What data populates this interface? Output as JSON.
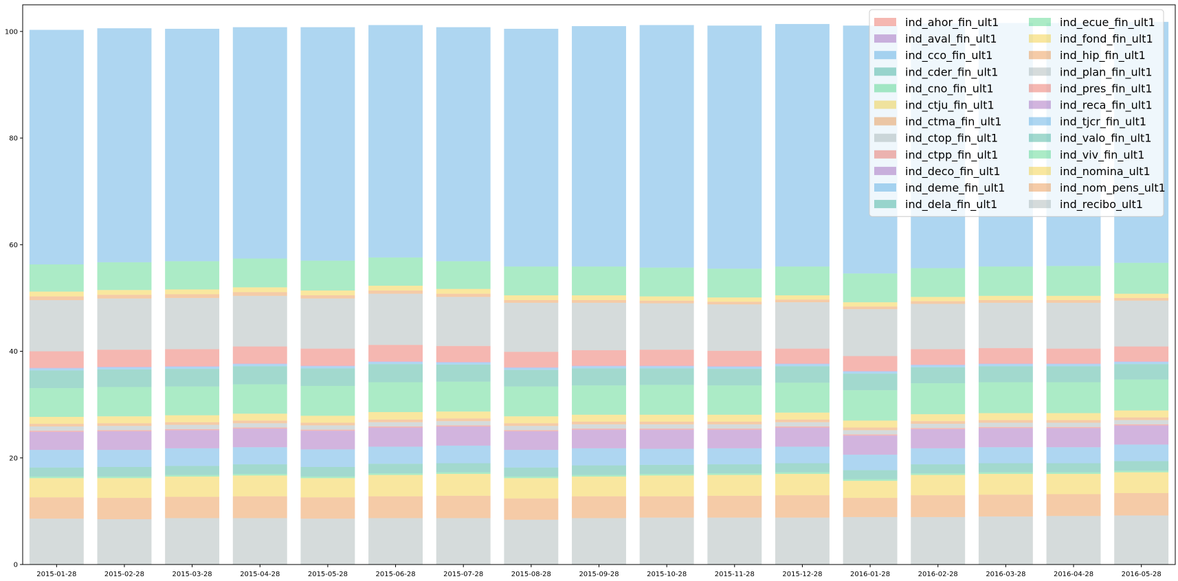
{
  "chart_data": {
    "type": "bar",
    "stacked": true,
    "bar_opacity": 0.4,
    "ylim": [
      0,
      105
    ],
    "y_ticks": [
      0,
      20,
      40,
      60,
      80,
      100
    ],
    "grid": false,
    "legend_position": "top-right",
    "legend_columns": 2,
    "categories": [
      "2015-01-28",
      "2015-02-28",
      "2015-03-28",
      "2015-04-28",
      "2015-05-28",
      "2015-06-28",
      "2015-07-28",
      "2015-08-28",
      "2015-09-28",
      "2015-10-28",
      "2015-11-28",
      "2015-12-28",
      "2016-01-28",
      "2016-02-28",
      "2016-03-28",
      "2016-04-28",
      "2016-05-28"
    ],
    "series": [
      {
        "name": "ind_recibo_ult1",
        "color": "#95a5a6",
        "values": [
          8.6,
          8.5,
          8.7,
          8.7,
          8.6,
          8.7,
          8.7,
          8.4,
          8.7,
          8.8,
          8.8,
          8.8,
          8.9,
          8.9,
          9.0,
          9.1,
          9.2
        ]
      },
      {
        "name": "ind_nom_pens_ult1",
        "color": "#e67e22",
        "values": [
          4.0,
          4.0,
          4.0,
          4.1,
          4.0,
          4.1,
          4.2,
          4.0,
          4.1,
          4.0,
          4.1,
          4.2,
          3.6,
          4.1,
          4.1,
          4.1,
          4.2
        ]
      },
      {
        "name": "ind_nomina_ult1",
        "color": "#f1c40f",
        "values": [
          3.6,
          3.7,
          3.8,
          3.9,
          3.6,
          4.0,
          4.1,
          3.8,
          3.7,
          3.9,
          3.9,
          4.0,
          3.2,
          3.8,
          3.9,
          3.8,
          3.9
        ]
      },
      {
        "name": "ind_viv_fin_ult1",
        "color": "#2ecc71",
        "values": [
          0.3,
          0.3,
          0.3,
          0.3,
          0.3,
          0.3,
          0.3,
          0.3,
          0.3,
          0.3,
          0.3,
          0.3,
          0.3,
          0.3,
          0.3,
          0.3,
          0.3
        ]
      },
      {
        "name": "ind_valo_fin_ult1",
        "color": "#16a085",
        "values": [
          1.7,
          1.8,
          1.7,
          1.8,
          1.8,
          1.8,
          1.7,
          1.7,
          1.8,
          1.7,
          1.7,
          1.7,
          1.7,
          1.7,
          1.7,
          1.7,
          1.8
        ]
      },
      {
        "name": "ind_tjcr_fin_ult1",
        "color": "#3498db",
        "values": [
          3.3,
          3.2,
          3.3,
          3.2,
          3.3,
          3.2,
          3.3,
          3.3,
          3.2,
          3.0,
          3.0,
          3.1,
          2.9,
          3.0,
          3.0,
          3.0,
          3.1
        ]
      },
      {
        "name": "ind_reca_fin_ult1",
        "color": "#8e44ad",
        "values": [
          3.4,
          3.5,
          3.4,
          3.5,
          3.5,
          3.6,
          3.6,
          3.5,
          3.5,
          3.6,
          3.5,
          3.6,
          3.6,
          3.6,
          3.6,
          3.6,
          3.6
        ]
      },
      {
        "name": "ind_pres_fin_ult1",
        "color": "#e74c3c",
        "values": [
          0.2,
          0.2,
          0.2,
          0.2,
          0.2,
          0.2,
          0.2,
          0.2,
          0.2,
          0.2,
          0.2,
          0.2,
          0.2,
          0.2,
          0.2,
          0.2,
          0.2
        ]
      },
      {
        "name": "ind_plan_fin_ult1",
        "color": "#95a5a6",
        "values": [
          0.8,
          0.8,
          0.8,
          0.8,
          0.8,
          0.8,
          0.8,
          0.8,
          0.8,
          0.8,
          0.8,
          0.8,
          0.8,
          0.8,
          0.8,
          0.8,
          0.8
        ]
      },
      {
        "name": "ind_hip_fin_ult1",
        "color": "#e67e22",
        "values": [
          0.5,
          0.5,
          0.5,
          0.5,
          0.5,
          0.5,
          0.5,
          0.5,
          0.5,
          0.5,
          0.5,
          0.5,
          0.5,
          0.5,
          0.5,
          0.5,
          0.5
        ]
      },
      {
        "name": "ind_fond_fin_ult1",
        "color": "#f1c40f",
        "values": [
          1.3,
          1.3,
          1.3,
          1.3,
          1.3,
          1.4,
          1.3,
          1.3,
          1.3,
          1.3,
          1.3,
          1.3,
          1.3,
          1.3,
          1.3,
          1.3,
          1.3
        ]
      },
      {
        "name": "ind_ecue_fin_ult1",
        "color": "#2ecc71",
        "values": [
          5.4,
          5.5,
          5.4,
          5.5,
          5.6,
          5.6,
          5.6,
          5.6,
          5.5,
          5.6,
          5.5,
          5.6,
          5.7,
          5.8,
          5.8,
          5.8,
          5.8
        ]
      },
      {
        "name": "ind_dela_fin_ult1",
        "color": "#16a085",
        "values": [
          3.3,
          3.3,
          3.3,
          3.4,
          3.3,
          3.4,
          3.2,
          3.1,
          3.2,
          3.1,
          3.1,
          3.1,
          3.1,
          3.0,
          3.0,
          3.0,
          2.9
        ]
      },
      {
        "name": "ind_deme_fin_ult1",
        "color": "#3498db",
        "values": [
          0.4,
          0.4,
          0.4,
          0.4,
          0.4,
          0.4,
          0.4,
          0.4,
          0.4,
          0.4,
          0.4,
          0.4,
          0.4,
          0.4,
          0.4,
          0.4,
          0.4
        ]
      },
      {
        "name": "ind_deco_fin_ult1",
        "color": "#8e44ad",
        "values": [
          0.1,
          0.1,
          0.1,
          0.1,
          0.1,
          0.1,
          0.1,
          0.1,
          0.1,
          0.1,
          0.1,
          0.1,
          0.1,
          0.1,
          0.1,
          0.1,
          0.1
        ]
      },
      {
        "name": "ind_ctpp_fin_ult1",
        "color": "#e74c3c",
        "values": [
          3.1,
          3.2,
          3.2,
          3.2,
          3.2,
          3.1,
          3.0,
          2.9,
          2.9,
          3.0,
          2.9,
          2.8,
          2.8,
          2.9,
          2.9,
          2.8,
          2.8
        ]
      },
      {
        "name": "ind_ctop_fin_ult1",
        "color": "#95a5a6",
        "values": [
          9.6,
          9.6,
          9.6,
          9.5,
          9.4,
          9.6,
          9.2,
          9.2,
          8.9,
          8.7,
          8.7,
          8.7,
          8.8,
          8.5,
          8.5,
          8.6,
          8.6
        ]
      },
      {
        "name": "ind_ctma_fin_ult1",
        "color": "#e67e22",
        "values": [
          0.7,
          0.7,
          0.7,
          0.7,
          0.6,
          0.6,
          0.6,
          0.5,
          0.5,
          0.5,
          0.5,
          0.5,
          0.5,
          0.5,
          0.5,
          0.5,
          0.5
        ]
      },
      {
        "name": "ind_ctju_fin_ult1",
        "color": "#f1c40f",
        "values": [
          0.9,
          0.9,
          0.9,
          0.9,
          0.9,
          0.9,
          0.9,
          0.9,
          0.9,
          0.8,
          0.8,
          0.8,
          0.8,
          0.8,
          0.8,
          0.8,
          0.8
        ]
      },
      {
        "name": "ind_cno_fin_ult1",
        "color": "#2ecc71",
        "values": [
          5.1,
          5.2,
          5.3,
          5.4,
          5.6,
          5.3,
          5.2,
          5.4,
          5.4,
          5.4,
          5.4,
          5.4,
          5.4,
          5.4,
          5.5,
          5.6,
          5.8
        ]
      },
      {
        "name": "ind_cder_fin_ult1",
        "color": "#16a085",
        "values": [
          0.0,
          0.0,
          0.0,
          0.0,
          0.0,
          0.0,
          0.0,
          0.0,
          0.0,
          0.0,
          0.0,
          0.0,
          0.0,
          0.0,
          0.0,
          0.0,
          0.0
        ]
      },
      {
        "name": "ind_cco_fin_ult1",
        "color": "#3498db",
        "values": [
          44.0,
          43.9,
          43.6,
          43.4,
          43.8,
          43.6,
          43.9,
          44.6,
          45.1,
          45.5,
          45.6,
          45.5,
          46.5,
          45.9,
          45.7,
          45.6,
          45.2
        ]
      },
      {
        "name": "ind_aval_fin_ult1",
        "color": "#8e44ad",
        "values": [
          0.0,
          0.0,
          0.0,
          0.0,
          0.0,
          0.0,
          0.0,
          0.0,
          0.0,
          0.0,
          0.0,
          0.0,
          0.0,
          0.0,
          0.0,
          0.0,
          0.0
        ]
      },
      {
        "name": "ind_ahor_fin_ult1",
        "color": "#e74c3c",
        "values": [
          0.0,
          0.0,
          0.0,
          0.0,
          0.0,
          0.0,
          0.0,
          0.0,
          0.0,
          0.0,
          0.0,
          0.0,
          0.0,
          0.0,
          0.0,
          0.0,
          0.0
        ]
      }
    ],
    "legend_order": [
      "ind_ahor_fin_ult1",
      "ind_aval_fin_ult1",
      "ind_cco_fin_ult1",
      "ind_cder_fin_ult1",
      "ind_cno_fin_ult1",
      "ind_ctju_fin_ult1",
      "ind_ctma_fin_ult1",
      "ind_ctop_fin_ult1",
      "ind_ctpp_fin_ult1",
      "ind_deco_fin_ult1",
      "ind_deme_fin_ult1",
      "ind_dela_fin_ult1",
      "ind_ecue_fin_ult1",
      "ind_fond_fin_ult1",
      "ind_hip_fin_ult1",
      "ind_plan_fin_ult1",
      "ind_pres_fin_ult1",
      "ind_reca_fin_ult1",
      "ind_tjcr_fin_ult1",
      "ind_valo_fin_ult1",
      "ind_viv_fin_ult1",
      "ind_nomina_ult1",
      "ind_nom_pens_ult1",
      "ind_recibo_ult1"
    ]
  }
}
